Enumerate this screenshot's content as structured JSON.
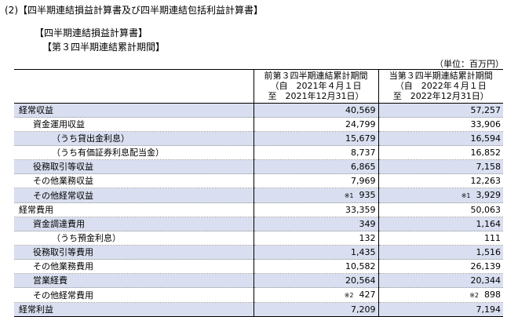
{
  "headings": {
    "h1": "(2)【四半期連結損益計算書及び四半期連結包括利益計算書】",
    "h2": "【四半期連結損益計算書】",
    "h3": "【第３四半期連結累計期間】"
  },
  "unit": "（単位：百万円）",
  "columns": {
    "prev": {
      "line1": "前第３四半期連結累計期間",
      "line2": "（自　2021年４月１日",
      "line3": "至　2021年12月31日）"
    },
    "curr": {
      "line1": "当第３四半期連結累計期間",
      "line2": "（自　2022年４月１日",
      "line3": "至　2022年12月31日）"
    }
  },
  "rows": [
    {
      "label": "経常収益",
      "level": 0,
      "shaded": true,
      "prev": "40,569",
      "curr": "57,257"
    },
    {
      "label": "資金運用収益",
      "level": 1,
      "shaded": false,
      "prev": "24,799",
      "curr": "33,906"
    },
    {
      "label": "（うち貸出金利息）",
      "level": 2,
      "shaded": true,
      "prev": "15,679",
      "curr": "16,594"
    },
    {
      "label": "（うち有価証券利息配当金）",
      "level": 2,
      "shaded": false,
      "prev": "8,737",
      "curr": "16,852"
    },
    {
      "label": "役務取引等収益",
      "level": 1,
      "shaded": true,
      "prev": "6,865",
      "curr": "7,158"
    },
    {
      "label": "その他業務収益",
      "level": 1,
      "shaded": false,
      "prev": "7,969",
      "curr": "12,263"
    },
    {
      "label": "その他経常収益",
      "level": 1,
      "shaded": true,
      "prev": "935",
      "prev_note": "※1",
      "curr": "3,929",
      "curr_note": "※1"
    },
    {
      "label": "経常費用",
      "level": 0,
      "shaded": false,
      "prev": "33,359",
      "curr": "50,063"
    },
    {
      "label": "資金調達費用",
      "level": 1,
      "shaded": true,
      "prev": "349",
      "curr": "1,164"
    },
    {
      "label": "（うち預金利息）",
      "level": 2,
      "shaded": false,
      "prev": "132",
      "curr": "111"
    },
    {
      "label": "役務取引等費用",
      "level": 1,
      "shaded": true,
      "prev": "1,435",
      "curr": "1,516"
    },
    {
      "label": "その他業務費用",
      "level": 1,
      "shaded": false,
      "prev": "10,582",
      "curr": "26,139"
    },
    {
      "label": "営業経費",
      "level": 1,
      "shaded": true,
      "prev": "20,564",
      "curr": "20,344"
    },
    {
      "label": "その他経常費用",
      "level": 1,
      "shaded": false,
      "prev": "427",
      "prev_note": "※2",
      "curr": "898",
      "curr_note": "※2"
    },
    {
      "label": "経常利益",
      "level": 0,
      "shaded": true,
      "prev": "7,209",
      "curr": "7,194"
    }
  ],
  "colors": {
    "row_shade": "#d9dff0"
  }
}
